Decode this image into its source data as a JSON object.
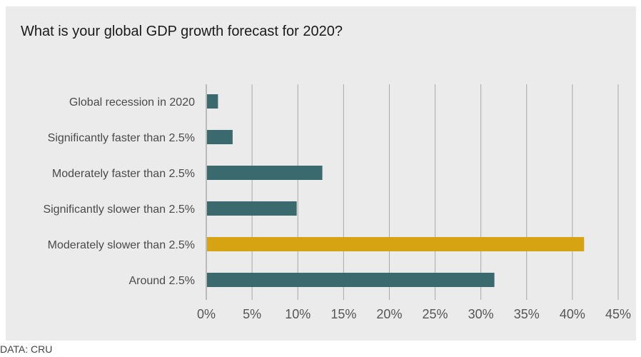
{
  "chart_data": {
    "type": "bar",
    "orientation": "horizontal",
    "title": "What is your global GDP growth forecast for 2020?",
    "source": "DATA: CRU",
    "xlabel": "",
    "ylabel": "",
    "categories": [
      "Global recession in 2020",
      "Significantly faster than 2.5%",
      "Moderately faster than 2.5%",
      "Significantly slower than 2.5%",
      "Moderately slower than 2.5%",
      "Around 2.5%"
    ],
    "values": [
      1.2,
      2.8,
      12.6,
      9.8,
      41.2,
      31.4
    ],
    "highlight_index": 4,
    "colors": {
      "default": "#3b6a6e",
      "highlight": "#d6a312",
      "grid": "#a8a8a8",
      "background": "#ebebeb"
    },
    "xlim": [
      0,
      45
    ],
    "xticks": [
      0,
      5,
      10,
      15,
      20,
      25,
      30,
      35,
      40,
      45
    ],
    "xtick_labels": [
      "0%",
      "5%",
      "10%",
      "15%",
      "20%",
      "25%",
      "30%",
      "35%",
      "40%",
      "45%"
    ],
    "grid": "vertical",
    "legend": "none"
  }
}
